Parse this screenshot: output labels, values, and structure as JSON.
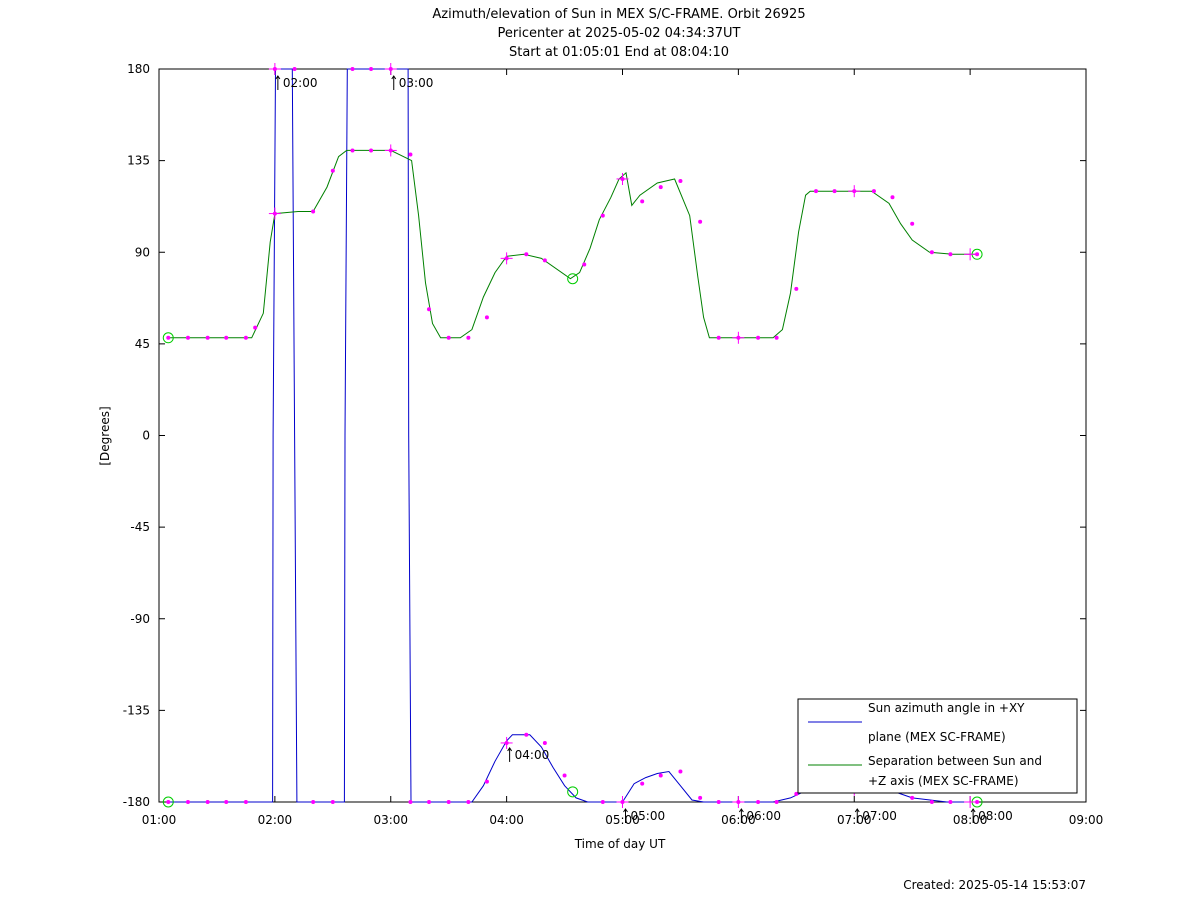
{
  "chart_data": {
    "type": "line",
    "title_lines": [
      "Azimuth/elevation of Sun in MEX S/C-FRAME.  Orbit 26925",
      "Pericenter at 2025-05-02 04:34:37UT",
      "Start at 01:05:01 End at 08:04:10"
    ],
    "xlabel": "Time of day UT",
    "ylabel": "[Degrees]",
    "created_text": "Created: 2025-05-14 15:53:07",
    "xlim_hours": [
      1,
      9
    ],
    "ylim": [
      -180,
      180
    ],
    "x_ticks": [
      "01:00",
      "02:00",
      "03:00",
      "04:00",
      "05:00",
      "06:00",
      "07:00",
      "08:00",
      "09:00"
    ],
    "y_ticks": [
      "180",
      "135",
      "90",
      "45",
      "0",
      "-45",
      "-90",
      "-135",
      "-180"
    ],
    "y_tick_values": [
      180,
      135,
      90,
      45,
      0,
      -45,
      -90,
      -135,
      -180
    ],
    "legend_position": "bottom-right",
    "annotations": [
      {
        "text": "02:00",
        "x": 2.0,
        "y": 180
      },
      {
        "text": "03:00",
        "x": 3.0,
        "y": 180
      },
      {
        "text": "04:00",
        "x": 4.0,
        "y": -150
      },
      {
        "text": "05:00",
        "x": 5.0,
        "y": -180
      },
      {
        "text": "06:00",
        "x": 6.0,
        "y": -180
      },
      {
        "text": "07:00",
        "x": 7.0,
        "y": -180
      },
      {
        "text": "08:00",
        "x": 8.0,
        "y": -180
      }
    ],
    "series": [
      {
        "name": "Sun azimuth angle in +XY plane (MEX SC-FRAME)",
        "legend_lines": [
          "Sun azimuth angle in +XY",
          "plane (MEX SC-FRAME)"
        ],
        "color": "#0000cc",
        "x": [
          1.08,
          1.5,
          1.98,
          1.985,
          2.005,
          2.15,
          2.17,
          2.19,
          2.6,
          2.605,
          2.625,
          3.15,
          3.155,
          3.175,
          3.7,
          3.8,
          3.9,
          4.0,
          4.05,
          4.2,
          4.3,
          4.4,
          4.5,
          4.6,
          4.7,
          4.8,
          4.9,
          5.0,
          5.1,
          5.2,
          5.3,
          5.4,
          5.5,
          5.6,
          5.7,
          5.8,
          6.0,
          6.3,
          6.45,
          6.6,
          6.8,
          7.0,
          7.15,
          7.3,
          7.5,
          7.8,
          8.0,
          8.06
        ],
        "values": [
          -180,
          -180,
          -180,
          0,
          180,
          180,
          0,
          -180,
          -180,
          0,
          180,
          180,
          0,
          -180,
          -180,
          -172,
          -160,
          -150,
          -147,
          -147,
          -153,
          -163,
          -172,
          -178,
          -180,
          -180,
          -180,
          -180,
          -171,
          -168,
          -166,
          -165,
          -172,
          -179,
          -180,
          -180,
          -180,
          -180,
          -178,
          -174,
          -173,
          -175,
          -174,
          -174,
          -178,
          -180,
          -180,
          -180
        ]
      },
      {
        "name": "Separation between Sun and +Z axis (MEX SC-FRAME)",
        "legend_lines": [
          "Separation between Sun and",
          "+Z axis (MEX SC-FRAME)"
        ],
        "color": "#008000",
        "x": [
          1.08,
          1.5,
          1.8,
          1.9,
          1.96,
          2.0,
          2.2,
          2.33,
          2.45,
          2.55,
          2.62,
          2.8,
          3.0,
          3.18,
          3.24,
          3.3,
          3.36,
          3.43,
          3.6,
          3.7,
          3.8,
          3.9,
          4.0,
          4.15,
          4.3,
          4.55,
          4.63,
          4.72,
          4.8,
          4.9,
          4.97,
          5.03,
          5.08,
          5.15,
          5.3,
          5.45,
          5.58,
          5.65,
          5.7,
          5.75,
          5.82,
          6.0,
          6.3,
          6.38,
          6.45,
          6.52,
          6.58,
          6.62,
          6.8,
          6.95,
          7.15,
          7.3,
          7.4,
          7.5,
          7.65,
          7.85,
          8.06
        ],
        "values": [
          48,
          48,
          48,
          60,
          95,
          109,
          110,
          110,
          122,
          137,
          140,
          140,
          140,
          135,
          108,
          75,
          55,
          48,
          48,
          52,
          68,
          80,
          88,
          89,
          87,
          77,
          80,
          92,
          106,
          117,
          126,
          129,
          113,
          118,
          124,
          126,
          108,
          78,
          58,
          48,
          48,
          48,
          48,
          52,
          70,
          100,
          118,
          120,
          120,
          120,
          120,
          114,
          104,
          96,
          90,
          89,
          89
        ]
      }
    ],
    "magenta_markers": [
      [
        1.08,
        48
      ],
      [
        1.25,
        48
      ],
      [
        1.42,
        48
      ],
      [
        1.58,
        48
      ],
      [
        1.75,
        48
      ],
      [
        1.83,
        53
      ],
      [
        2.0,
        109
      ],
      [
        2.33,
        110
      ],
      [
        2.5,
        130
      ],
      [
        2.67,
        140
      ],
      [
        2.83,
        140
      ],
      [
        3.0,
        140
      ],
      [
        3.17,
        138
      ],
      [
        3.33,
        62
      ],
      [
        3.5,
        48
      ],
      [
        3.67,
        48
      ],
      [
        3.83,
        58
      ],
      [
        4.0,
        87
      ],
      [
        4.17,
        89
      ],
      [
        4.33,
        86
      ],
      [
        4.67,
        84
      ],
      [
        4.83,
        108
      ],
      [
        5.0,
        126
      ],
      [
        5.17,
        115
      ],
      [
        5.33,
        122
      ],
      [
        5.5,
        125
      ],
      [
        5.67,
        105
      ],
      [
        5.83,
        48
      ],
      [
        6.0,
        48
      ],
      [
        6.17,
        48
      ],
      [
        6.33,
        48
      ],
      [
        6.5,
        72
      ],
      [
        6.67,
        120
      ],
      [
        6.83,
        120
      ],
      [
        7.0,
        120
      ],
      [
        7.17,
        120
      ],
      [
        7.33,
        117
      ],
      [
        7.5,
        104
      ],
      [
        7.67,
        90
      ],
      [
        7.83,
        89
      ],
      [
        8.06,
        89
      ],
      [
        1.08,
        -180
      ],
      [
        1.25,
        -180
      ],
      [
        1.42,
        -180
      ],
      [
        1.58,
        -180
      ],
      [
        1.75,
        -180
      ],
      [
        2.0,
        180
      ],
      [
        2.17,
        180
      ],
      [
        2.33,
        -180
      ],
      [
        2.5,
        -180
      ],
      [
        2.67,
        180
      ],
      [
        2.83,
        180
      ],
      [
        3.0,
        180
      ],
      [
        3.17,
        -180
      ],
      [
        3.33,
        -180
      ],
      [
        3.5,
        -180
      ],
      [
        3.67,
        -180
      ],
      [
        3.83,
        -170
      ],
      [
        4.0,
        -151
      ],
      [
        4.17,
        -147
      ],
      [
        4.33,
        -151
      ],
      [
        4.5,
        -167
      ],
      [
        4.83,
        -180
      ],
      [
        5.0,
        -180
      ],
      [
        5.17,
        -171
      ],
      [
        5.33,
        -167
      ],
      [
        5.5,
        -165
      ],
      [
        5.67,
        -178
      ],
      [
        5.83,
        -180
      ],
      [
        6.0,
        -180
      ],
      [
        6.17,
        -180
      ],
      [
        6.33,
        -180
      ],
      [
        6.5,
        -176
      ],
      [
        7.0,
        -174
      ],
      [
        7.5,
        -178
      ],
      [
        7.67,
        -180
      ],
      [
        7.83,
        -180
      ],
      [
        8.06,
        -180
      ]
    ],
    "cross_markers": [
      [
        2.0,
        109
      ],
      [
        3.0,
        140
      ],
      [
        4.0,
        87
      ],
      [
        5.0,
        126
      ],
      [
        6.0,
        48
      ],
      [
        7.0,
        120
      ],
      [
        8.0,
        89
      ],
      [
        2.0,
        180
      ],
      [
        3.0,
        180
      ],
      [
        4.0,
        -151
      ],
      [
        5.0,
        -180
      ],
      [
        6.0,
        -180
      ],
      [
        7.0,
        -174
      ],
      [
        8.0,
        -180
      ]
    ],
    "circle_markers": [
      [
        1.08,
        48
      ],
      [
        4.57,
        77
      ],
      [
        8.06,
        89
      ],
      [
        1.08,
        -180
      ],
      [
        4.57,
        -175
      ],
      [
        8.06,
        -180
      ]
    ]
  }
}
